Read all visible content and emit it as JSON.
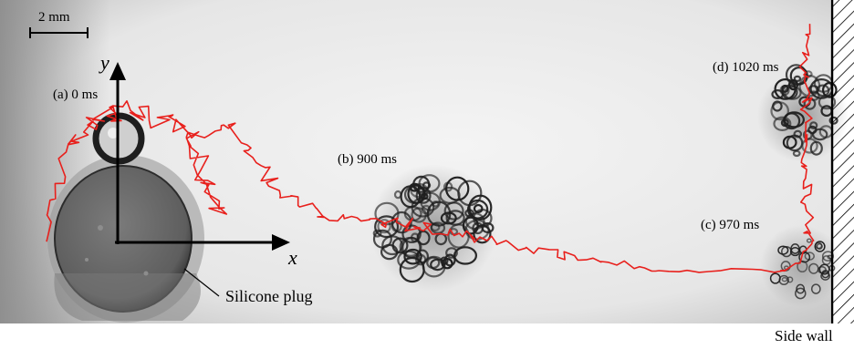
{
  "scale_bar": {
    "label": "2 mm"
  },
  "axes": {
    "x_label": "x",
    "y_label": "y"
  },
  "snapshots": [
    {
      "id": "a",
      "label": "(a) 0 ms"
    },
    {
      "id": "b",
      "label": "(b) 900 ms"
    },
    {
      "id": "c",
      "label": "(c) 970 ms"
    },
    {
      "id": "d",
      "label": "(d) 1020 ms"
    }
  ],
  "annotations": {
    "plug_label": "Silicone plug",
    "wall_label": "Side wall"
  },
  "colors": {
    "trajectory": "#e8201c",
    "background": "#e9e9e9",
    "plug": "#6e6e6e"
  }
}
